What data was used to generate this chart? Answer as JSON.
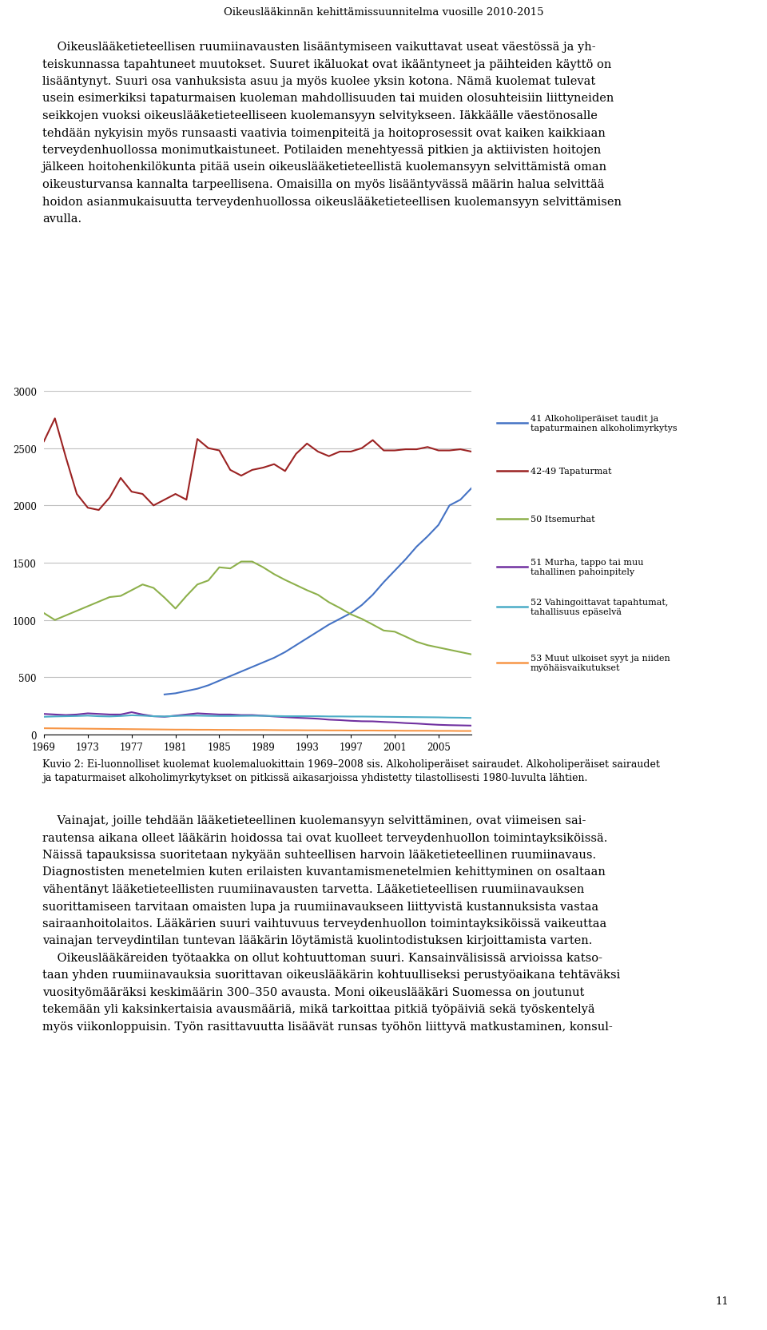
{
  "page_title": "Oikeuslääkinnän kehittämissuunnitelma vuosille 2010-2015",
  "para1_lines": [
    "    Oikeuslääketieteellisen ruumiinavausten lisääntymiseen vaikuttavat useat väestössä ja yh-",
    "teiskunnassa tapahtuneet muutokset. Suuret ikäluokat ovat ikääntyneet ja päihteiden käyttö on",
    "lisääntynyt. Suuri osa vanhuksista asuu ja myös kuolee yksin kotona. Nämä kuolemat tulevat",
    "usein esimerkiksi tapaturmaisen kuoleman mahdollisuuden tai muiden olosuhteisiin liittyneiden",
    "seikkojen vuoksi oikeuslääketieteelliseen kuolemansyyn selvitykseen. Iäkkäälle väestönosalle",
    "tehdään nykyisin myös runsaasti vaativia toimenpiteitä ja hoitoprosessit ovat kaiken kaikkiaan",
    "terveydenhuollossa monimutkaistuneet. Potilaiden menehtyessä pitkien ja aktiivisten hoitojen",
    "jälkeen hoitohenkilökunta pitää usein oikeuslääketieteellistä kuolemansyyn selvittämistä oman",
    "oikeusturvansa kannalta tarpeellisena. Omaisilla on myös lisääntyvässä määrin halua selvittää",
    "hoidon asianmukaisuutta terveydenhuollossa oikeuslääketieteellisen kuolemansyyn selvittämisen",
    "avulla."
  ],
  "caption_lines": [
    "Kuvio 2: Ei-luonnolliset kuolemat kuolemaluokittain 1969–2008 sis. Alkoholiperäiset sairaudet. Alkoholiperäiset sairaudet",
    "ja tapaturmaiset alkoholimyrkytykset on pitkissä aikasarjoissa yhdistetty tilastollisesti 1980-luvulta lähtien."
  ],
  "para2_lines": [
    "    Vainajat, joille tehdään lääketieteellinen kuolemansyyn selvittäminen, ovat viimeisen sai-",
    "rautensa aikana olleet lääkärin hoidossa tai ovat kuolleet terveydenhuollon toimintayksiköissä.",
    "Näissä tapauksissa suoritetaan nykyään suhteellisen harvoin lääketieteellinen ruumiinavaus.",
    "Diagnostisten menetelmien kuten erilaisten kuvantamismenetelmien kehittyminen on osaltaan",
    "vähentänyt lääketieteellisten ruumiinavausten tarvetta. Lääketieteellisen ruumiinavauksen",
    "suorittamiseen tarvitaan omaisten lupa ja ruumiinavaukseen liittyvistä kustannuksista vastaa",
    "sairaanhoitolaitos. Lääkärien suuri vaihtuvuus terveydenhuollon toimintayksiköissä vaikeuttaa",
    "vainajan terveydintilan tuntevan lääkärin löytämistä kuolintodistuksen kirjoittamista varten.",
    "    Oikeuslääkäreiden työtaakka on ollut kohtuuttoman suuri. Kansainvälisissä arvioissa katso-",
    "taan yhden ruumiinavauksia suorittavan oikeuslääkärin kohtuulliseksi perustyöaikana tehtäväksi",
    "vuosityömääräksi keskimäärin 300–350 avausta. Moni oikeuslääkäri Suomessa on joutunut",
    "tekemään yli kaksinkertaisia avausmääriä, mikä tarkoittaa pitkiä työpäiviä sekä työskentelyä",
    "myös viikonloppuisin. Työn rasittavuutta lisäävät runsas työhön liittyvä matkustaminen, konsul-"
  ],
  "page_number": "11",
  "tapaturmat_years": [
    1969,
    1970,
    1971,
    1972,
    1973,
    1974,
    1975,
    1976,
    1977,
    1978,
    1979,
    1980,
    1981,
    1982,
    1983,
    1984,
    1985,
    1986,
    1987,
    1988,
    1989,
    1990,
    1991,
    1992,
    1993,
    1994,
    1995,
    1996,
    1997,
    1998,
    1999,
    2000,
    2001,
    2002,
    2003,
    2004,
    2005,
    2006,
    2007,
    2008
  ],
  "tapaturmat_vals": [
    2560,
    2760,
    2420,
    2100,
    1980,
    1960,
    2070,
    2240,
    2120,
    2100,
    2000,
    2050,
    2100,
    2050,
    2580,
    2500,
    2480,
    2310,
    2260,
    2310,
    2330,
    2360,
    2300,
    2450,
    2540,
    2470,
    2430,
    2470,
    2470,
    2500,
    2570,
    2480,
    2480,
    2490,
    2490,
    2510,
    2480,
    2480,
    2490,
    2470
  ],
  "alkoholi_years": [
    1980,
    1981,
    1982,
    1983,
    1984,
    1985,
    1986,
    1987,
    1988,
    1989,
    1990,
    1991,
    1992,
    1993,
    1994,
    1995,
    1996,
    1997,
    1998,
    1999,
    2000,
    2001,
    2002,
    2003,
    2004,
    2005,
    2006,
    2007,
    2008
  ],
  "alkoholi_vals": [
    350,
    360,
    380,
    400,
    430,
    470,
    510,
    550,
    590,
    630,
    670,
    720,
    780,
    840,
    900,
    960,
    1010,
    1060,
    1130,
    1220,
    1330,
    1430,
    1530,
    1640,
    1730,
    1830,
    2000,
    2050,
    2150
  ],
  "itsemurhat_years": [
    1969,
    1970,
    1971,
    1972,
    1973,
    1974,
    1975,
    1976,
    1977,
    1978,
    1979,
    1980,
    1981,
    1982,
    1983,
    1984,
    1985,
    1986,
    1987,
    1988,
    1989,
    1990,
    1991,
    1992,
    1993,
    1994,
    1995,
    1996,
    1997,
    1998,
    1999,
    2000,
    2001,
    2002,
    2003,
    2004,
    2005,
    2006,
    2007,
    2008
  ],
  "itsemurhat_vals": [
    1060,
    1000,
    1040,
    1080,
    1120,
    1160,
    1200,
    1210,
    1260,
    1310,
    1280,
    1195,
    1100,
    1210,
    1310,
    1345,
    1460,
    1450,
    1510,
    1510,
    1460,
    1400,
    1350,
    1305,
    1260,
    1220,
    1155,
    1105,
    1050,
    1010,
    960,
    908,
    898,
    855,
    810,
    780,
    760,
    740,
    720,
    700
  ],
  "murha_years": [
    1969,
    1970,
    1971,
    1972,
    1973,
    1974,
    1975,
    1976,
    1977,
    1978,
    1979,
    1980,
    1981,
    1982,
    1983,
    1984,
    1985,
    1986,
    1987,
    1988,
    1989,
    1990,
    1991,
    1992,
    1993,
    1994,
    1995,
    1996,
    1997,
    1998,
    1999,
    2000,
    2001,
    2002,
    2003,
    2004,
    2005,
    2006,
    2007,
    2008
  ],
  "murha_vals": [
    180,
    175,
    170,
    175,
    185,
    180,
    175,
    175,
    195,
    175,
    160,
    155,
    165,
    175,
    185,
    180,
    175,
    175,
    170,
    170,
    165,
    158,
    152,
    147,
    143,
    138,
    130,
    126,
    120,
    116,
    115,
    110,
    106,
    100,
    96,
    90,
    85,
    82,
    80,
    78
  ],
  "vahing_years": [
    1969,
    1970,
    1971,
    1972,
    1973,
    1974,
    1975,
    1976,
    1977,
    1978,
    1979,
    1980,
    1981,
    1982,
    1983,
    1984,
    1985,
    1986,
    1987,
    1988,
    1989,
    1990,
    1991,
    1992,
    1993,
    1994,
    1995,
    1996,
    1997,
    1998,
    1999,
    2000,
    2001,
    2002,
    2003,
    2004,
    2005,
    2006,
    2007,
    2008
  ],
  "vahing_vals": [
    155,
    158,
    160,
    162,
    165,
    160,
    158,
    162,
    168,
    165,
    160,
    158,
    162,
    165,
    165,
    163,
    162,
    162,
    163,
    164,
    163,
    162,
    160,
    160,
    160,
    160,
    158,
    158,
    157,
    157,
    156,
    155,
    154,
    153,
    152,
    151,
    150,
    148,
    147,
    145
  ],
  "muut_years": [
    1969,
    1970,
    1971,
    1972,
    1973,
    1974,
    1975,
    1976,
    1977,
    1978,
    1979,
    1980,
    1981,
    1982,
    1983,
    1984,
    1985,
    1986,
    1987,
    1988,
    1989,
    1990,
    1991,
    1992,
    1993,
    1994,
    1995,
    1996,
    1997,
    1998,
    1999,
    2000,
    2001,
    2002,
    2003,
    2004,
    2005,
    2006,
    2007,
    2008
  ],
  "muut_vals": [
    55,
    54,
    53,
    52,
    51,
    50,
    49,
    48,
    47,
    46,
    45,
    44,
    43,
    43,
    42,
    42,
    41,
    41,
    40,
    40,
    40,
    39,
    38,
    38,
    37,
    37,
    36,
    36,
    35,
    35,
    35,
    34,
    34,
    33,
    33,
    33,
    32,
    32,
    31,
    31
  ],
  "ylim": [
    0,
    3000
  ],
  "yticks": [
    0,
    500,
    1000,
    1500,
    2000,
    2500,
    3000
  ],
  "xtick_years": [
    1969,
    1973,
    1977,
    1981,
    1985,
    1989,
    1993,
    1997,
    2001,
    2005
  ],
  "color_tapaturmat": "#9B2222",
  "color_alkoholi": "#4472C4",
  "color_itsemurhat": "#8DB04B",
  "color_murha": "#7030A0",
  "color_vahing": "#4BACC6",
  "color_muut": "#F79646",
  "legend_entries": [
    {
      "label": "41 Alkoholiperäiset taudit ja\ntapaturmainen alkoholimyrkytys",
      "color": "#4472C4"
    },
    {
      "label": "42-49 Tapaturmat",
      "color": "#9B2222"
    },
    {
      "label": "50 Itsemurhat",
      "color": "#8DB04B"
    },
    {
      "label": "51 Murha, tappo tai muu\ntahallinen pahoinpitely",
      "color": "#7030A0"
    },
    {
      "label": "52 Vahingoittavat tapahtumat,\ntahallisuus epäselvä",
      "color": "#4BACC6"
    },
    {
      "label": "53 Muut ulkoiset syyt ja niiden\nmyöhäisvaikutukset",
      "color": "#F79646"
    }
  ],
  "chart_bg": "#ffffff",
  "grid_color": "#c0c0c0",
  "text_color": "#000000",
  "body_fontsize": 10.5,
  "caption_fontsize": 9.0,
  "title_fontsize": 9.5
}
